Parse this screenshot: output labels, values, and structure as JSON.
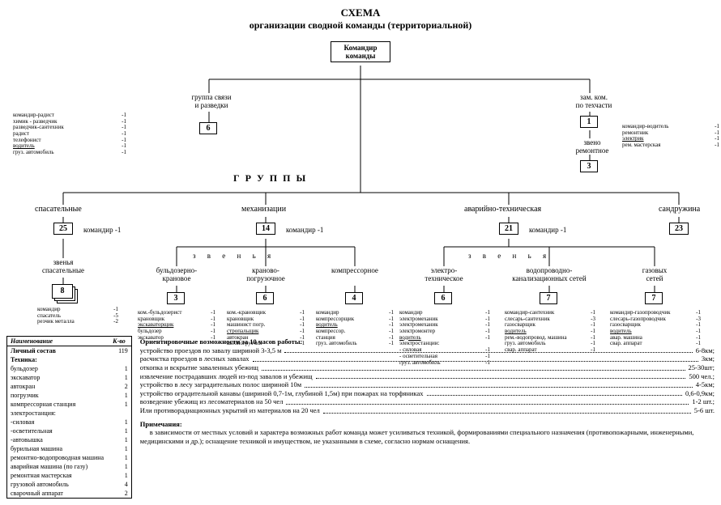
{
  "title1": "СХЕМА",
  "title2": "организации сводной команды  (территориальной)",
  "colors": {
    "bg": "#ffffff",
    "fg": "#000000"
  },
  "commander": {
    "label": "Командир\nкоманды"
  },
  "deputy": {
    "label": "зам. ком.\nпо техчасти",
    "count": "1"
  },
  "commGroup": {
    "label": "группа связи\nи разведки",
    "count": "6"
  },
  "repairLink": {
    "label": "звено\nремонтное",
    "count": "3"
  },
  "leftRoles": [
    [
      "командир-радист",
      "-1"
    ],
    [
      "химик - разведчик",
      "-1"
    ],
    [
      "разведчик-сантехник",
      "-1"
    ],
    [
      "радист",
      "-1"
    ],
    [
      "телефонист",
      "-1"
    ],
    [
      "водитель",
      "-1",
      "u"
    ],
    [
      "груз. автомобиль",
      "-1"
    ]
  ],
  "rightRoles": [
    [
      "командир-водитель",
      "-1"
    ],
    [
      "ремонтник",
      "-1"
    ],
    [
      "электрик",
      "-1",
      "u"
    ],
    [
      "рем. мастерская",
      "-1"
    ]
  ],
  "groupsHeader": "Г       Р       У       П       П       Ы",
  "zvenyaLabel": "з   в   е   н   ь   я",
  "groups": {
    "rescue": {
      "label": "спасательные",
      "count": "25",
      "cmd": "командир   -1"
    },
    "mech": {
      "label": "механизации",
      "count": "14",
      "cmd": "командир   -1"
    },
    "tech": {
      "label": "аварийно-техническая",
      "count": "21",
      "cmd": "командир   -1"
    },
    "sand": {
      "label": "сандружина",
      "count": "23"
    }
  },
  "rescueLinks": {
    "label": "звенья\nспасательные",
    "count": "8",
    "roles": [
      [
        "командир",
        "-1"
      ],
      [
        "спасатель",
        "-5"
      ],
      [
        "резчик металла",
        "-2"
      ]
    ]
  },
  "mechLinks": [
    {
      "label": "бульдозерно-\nкрановое",
      "count": "3",
      "roles": [
        [
          "ком.-бульдозерист",
          "-1"
        ],
        [
          "крановщик",
          "-1"
        ],
        [
          "экскаваторщик",
          "-1",
          "u"
        ],
        [
          "бульдозер",
          "-1"
        ],
        [
          "экскаватор",
          "-1"
        ]
      ]
    },
    {
      "label": "краново-\nпогрузочное",
      "count": "6",
      "roles": [
        [
          "ком.-крановщик",
          "-1"
        ],
        [
          "крановщик",
          "-1"
        ],
        [
          "машинист погр.",
          "-1"
        ],
        [
          "стропальщик",
          "-1",
          "u"
        ],
        [
          "автокран",
          "-1"
        ],
        [
          "автопогрузчик",
          "-1"
        ]
      ]
    },
    {
      "label": "компрессорное",
      "count": "4",
      "roles": [
        [
          "командир",
          "-1"
        ],
        [
          "компрессорщик",
          "-1"
        ],
        [
          "водитель",
          "-1",
          "u"
        ],
        [
          "компрессор.",
          "-1"
        ],
        [
          "станция",
          "-1"
        ],
        [
          "груз. автомобиль",
          "-1"
        ]
      ]
    }
  ],
  "techLinks": [
    {
      "label": "электро-\nтехническое",
      "count": "6",
      "roles": [
        [
          "командир",
          "-1"
        ],
        [
          "электромеханик",
          "-1"
        ],
        [
          "электромеханик",
          "-1"
        ],
        [
          "электромонтер",
          "-1"
        ],
        [
          "водитель",
          "-1",
          "u"
        ],
        [
          "электростанции:",
          ""
        ],
        [
          "- силовая",
          "-1"
        ],
        [
          "- осветительная",
          "-1"
        ],
        [
          "груз. автомобиль",
          "-1"
        ]
      ]
    },
    {
      "label": "водопроводно-\nканализационных сетей",
      "count": "7",
      "roles": [
        [
          "командир-сантехник",
          "-1"
        ],
        [
          "слесарь-сантехник",
          "-3"
        ],
        [
          "газосварщик",
          "-1"
        ],
        [
          "водитель",
          "-1",
          "u"
        ],
        [
          "рем.-водопровод. машина",
          "-1"
        ],
        [
          "груз. автомобиль",
          "-1"
        ],
        [
          "свар. аппарат",
          "-1"
        ]
      ]
    },
    {
      "label": "газовых\nсетей",
      "count": "7",
      "roles": [
        [
          "командир-газопроводчик",
          "-1"
        ],
        [
          "слесарь-газопроводчик",
          "-3"
        ],
        [
          "газосварщик",
          "-1"
        ],
        [
          "водитель",
          "-1",
          "u"
        ],
        [
          "авар. машина",
          "-1"
        ],
        [
          "свар. аппарат",
          "-1"
        ]
      ]
    }
  ],
  "summary": {
    "headers": [
      "Наименование",
      "К-во"
    ],
    "personnel": {
      "label": "Личный состав",
      "count": "119"
    },
    "tech_label": "Техника:",
    "rows": [
      [
        "бульдозер",
        "1"
      ],
      [
        "экскаватор",
        "1"
      ],
      [
        "автокран",
        "2"
      ],
      [
        "погрузчик",
        "1"
      ],
      [
        "компрессорная станция",
        "1"
      ],
      [
        "электростанция:",
        ""
      ],
      [
        "-силовая",
        "1"
      ],
      [
        "-осветительная",
        "1"
      ],
      [
        "-автовышка",
        "1"
      ],
      [
        "бурильная машина",
        "1"
      ],
      [
        "ремонтно-водопроводная машина",
        "1"
      ],
      [
        "аварийная машина (по газу)",
        "1"
      ],
      [
        "ремонтная мастерская",
        "1"
      ],
      [
        "грузовой автомобиль",
        "4"
      ],
      [
        "сварочный аппарат",
        "2"
      ]
    ]
  },
  "capabilities": {
    "header": "Ориентировочные возможности за 10 часов работы:",
    "lines": [
      [
        "устройство проездов по завалу шириной 3-3,5 м",
        "6-8км;"
      ],
      [
        "расчистка проездов в лесных завалах",
        "3км;"
      ],
      [
        "откопка и вскрытие заваленных убежищ",
        "25-30шт;"
      ],
      [
        "извлечение пострадавших людей из-под завалов и убежищ",
        "500 чел.;"
      ],
      [
        "устройство в лесу заградительных полос шириной 10м",
        "4-5км;"
      ],
      [
        "устройство оградительной канавы (шириной 0,7-1м, глубиной 1,5м) при пожарах на торфяниках",
        "0,6-0,9км;"
      ],
      [
        "возведение убежищ из лесоматериалов на 50 чел",
        "1-2 шт.;"
      ],
      [
        "Или противорадиационных укрытий из материалов на 20 чел",
        "5-6 шт."
      ]
    ],
    "notes_header": "Примечания:",
    "notes": "в зависимости от местных условий и характера возможных работ команда может усиливаться техникой, формированиями специального назначения (противопожарными, инженерными, медицинскими и др.); оснащение техникой и имуществом, не указанными в схеме, согласно нормам оснащения."
  }
}
